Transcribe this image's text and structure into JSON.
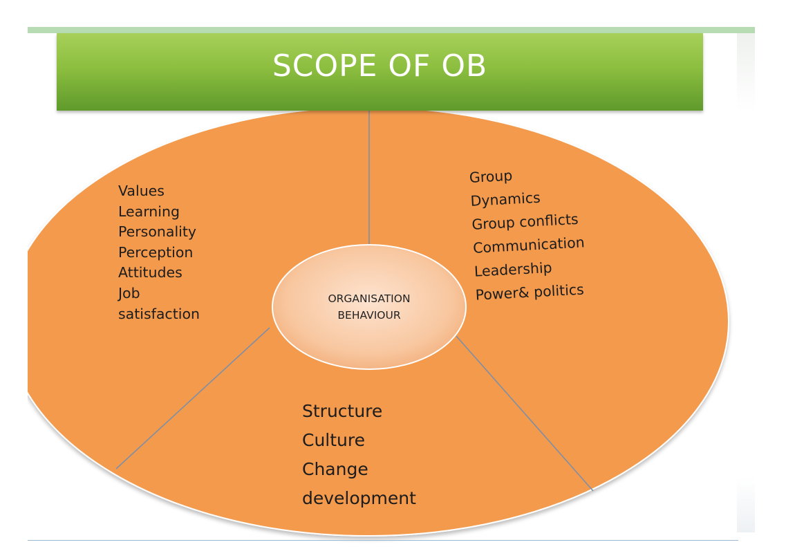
{
  "title": "SCOPE OF OB",
  "center": {
    "line1": "ORGANISATION",
    "line2": "BEHAVIOUR"
  },
  "segments": {
    "left": [
      "Values",
      "Learning",
      "Personality",
      "Perception",
      "Attitudes",
      "Job",
      "satisfaction"
    ],
    "right": [
      "Group",
      "Dynamics",
      "Group conflicts",
      "Communication",
      "Leadership",
      "Power& politics"
    ],
    "bottom": [
      "Structure",
      "Culture",
      "Change",
      "development"
    ]
  },
  "colors": {
    "banner": "#8cbe3f",
    "ellipse": "#f39a4e",
    "center_ellipse": "#f8c9a4",
    "divider_lines": "#7d8fa6"
  }
}
